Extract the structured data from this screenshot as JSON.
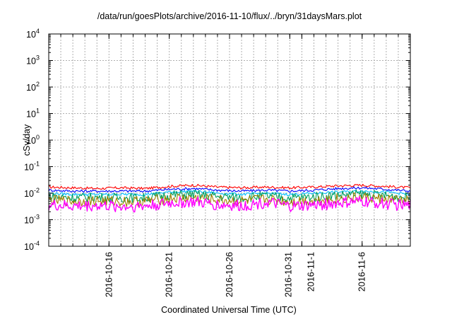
{
  "chart_data": {
    "type": "line",
    "title": "/data/run/goesPlots/archive/2016-11-10/flux/../bryn/31daysMars.plot",
    "xlabel": "Coordinated Universal Time (UTC)",
    "ylabel": "cSv/day",
    "yscale": "log",
    "ylim": [
      0.0001,
      10000
    ],
    "grid": true,
    "xlim": [
      "2016-10-11",
      "2016-11-10"
    ],
    "y_ticks": [
      {
        "base": "10",
        "exp": "4",
        "value": 10000
      },
      {
        "base": "10",
        "exp": "3",
        "value": 1000
      },
      {
        "base": "10",
        "exp": "2",
        "value": 100
      },
      {
        "base": "10",
        "exp": "1",
        "value": 10
      },
      {
        "base": "10",
        "exp": "0",
        "value": 1
      },
      {
        "base": "10",
        "exp": "-1",
        "value": 0.1
      },
      {
        "base": "10",
        "exp": "-2",
        "value": 0.01
      },
      {
        "base": "10",
        "exp": "-3",
        "value": 0.001
      },
      {
        "base": "10",
        "exp": "-4",
        "value": 0.0001
      }
    ],
    "x_ticks": [
      {
        "date": "2016-10-16",
        "label": "2016-10-16"
      },
      {
        "date": "2016-10-21",
        "label": "2016-10-21"
      },
      {
        "date": "2016-10-26",
        "label": "2016-10-26"
      },
      {
        "date": "2016-10-31",
        "label": "2016-10-31"
      },
      {
        "date": "2016-11-01",
        "label": "2016-11-1"
      },
      {
        "date": "2016-11-06",
        "label": "2016-11-6"
      }
    ],
    "series": [
      {
        "color": "#ff0000",
        "x": [
          "2016-10-11",
          "2016-10-13",
          "2016-10-15",
          "2016-10-17",
          "2016-10-19",
          "2016-10-21",
          "2016-10-23",
          "2016-10-25",
          "2016-10-27",
          "2016-10-29",
          "2016-10-31",
          "2016-11-02",
          "2016-11-04",
          "2016-11-06",
          "2016-11-08",
          "2016-11-10"
        ],
        "y": [
          0.017,
          0.016,
          0.015,
          0.016,
          0.015,
          0.018,
          0.02,
          0.017,
          0.016,
          0.017,
          0.016,
          0.017,
          0.019,
          0.02,
          0.018,
          0.016
        ]
      },
      {
        "color": "#0000ff",
        "x": [
          "2016-10-11",
          "2016-10-13",
          "2016-10-15",
          "2016-10-17",
          "2016-10-19",
          "2016-10-21",
          "2016-10-23",
          "2016-10-25",
          "2016-10-27",
          "2016-10-29",
          "2016-10-31",
          "2016-11-02",
          "2016-11-04",
          "2016-11-06",
          "2016-11-08",
          "2016-11-10"
        ],
        "y": [
          0.013,
          0.012,
          0.012,
          0.012,
          0.012,
          0.014,
          0.015,
          0.013,
          0.012,
          0.013,
          0.012,
          0.013,
          0.015,
          0.016,
          0.014,
          0.012
        ]
      },
      {
        "color": "#00bfff",
        "x": [
          "2016-10-11",
          "2016-10-13",
          "2016-10-15",
          "2016-10-17",
          "2016-10-19",
          "2016-10-21",
          "2016-10-23",
          "2016-10-25",
          "2016-10-27",
          "2016-10-29",
          "2016-10-31",
          "2016-11-02",
          "2016-11-04",
          "2016-11-06",
          "2016-11-08",
          "2016-11-10"
        ],
        "y": [
          0.01,
          0.009,
          0.009,
          0.009,
          0.009,
          0.011,
          0.012,
          0.01,
          0.009,
          0.01,
          0.009,
          0.01,
          0.011,
          0.012,
          0.011,
          0.009
        ]
      },
      {
        "color": "#00a060",
        "x": [
          "2016-10-11",
          "2016-10-13",
          "2016-10-15",
          "2016-10-17",
          "2016-10-19",
          "2016-10-21",
          "2016-10-23",
          "2016-10-25",
          "2016-10-27",
          "2016-10-29",
          "2016-10-31",
          "2016-11-02",
          "2016-11-04",
          "2016-11-06",
          "2016-11-08",
          "2016-11-10"
        ],
        "y": [
          0.0075,
          0.0068,
          0.007,
          0.0066,
          0.0068,
          0.0085,
          0.009,
          0.0075,
          0.0068,
          0.0078,
          0.0066,
          0.0072,
          0.0085,
          0.0092,
          0.008,
          0.0068
        ]
      },
      {
        "color": "#a08000",
        "x": [
          "2016-10-11",
          "2016-10-13",
          "2016-10-15",
          "2016-10-17",
          "2016-10-19",
          "2016-10-21",
          "2016-10-23",
          "2016-10-25",
          "2016-10-27",
          "2016-10-29",
          "2016-10-31",
          "2016-11-02",
          "2016-11-04",
          "2016-11-06",
          "2016-11-08",
          "2016-11-10"
        ],
        "y": [
          0.0055,
          0.005,
          0.0052,
          0.0049,
          0.005,
          0.0062,
          0.0066,
          0.0055,
          0.005,
          0.0058,
          0.0049,
          0.0053,
          0.0062,
          0.0068,
          0.0059,
          0.005
        ]
      },
      {
        "color": "#ff00ff",
        "x": [
          "2016-10-11",
          "2016-10-13",
          "2016-10-15",
          "2016-10-17",
          "2016-10-19",
          "2016-10-21",
          "2016-10-23",
          "2016-10-25",
          "2016-10-27",
          "2016-10-29",
          "2016-10-31",
          "2016-11-02",
          "2016-11-04",
          "2016-11-06",
          "2016-11-08",
          "2016-11-10"
        ],
        "y": [
          0.0035,
          0.0032,
          0.0034,
          0.0031,
          0.0033,
          0.0042,
          0.0046,
          0.0036,
          0.0033,
          0.0045,
          0.0031,
          0.0035,
          0.0042,
          0.0048,
          0.004,
          0.0033
        ]
      }
    ]
  }
}
